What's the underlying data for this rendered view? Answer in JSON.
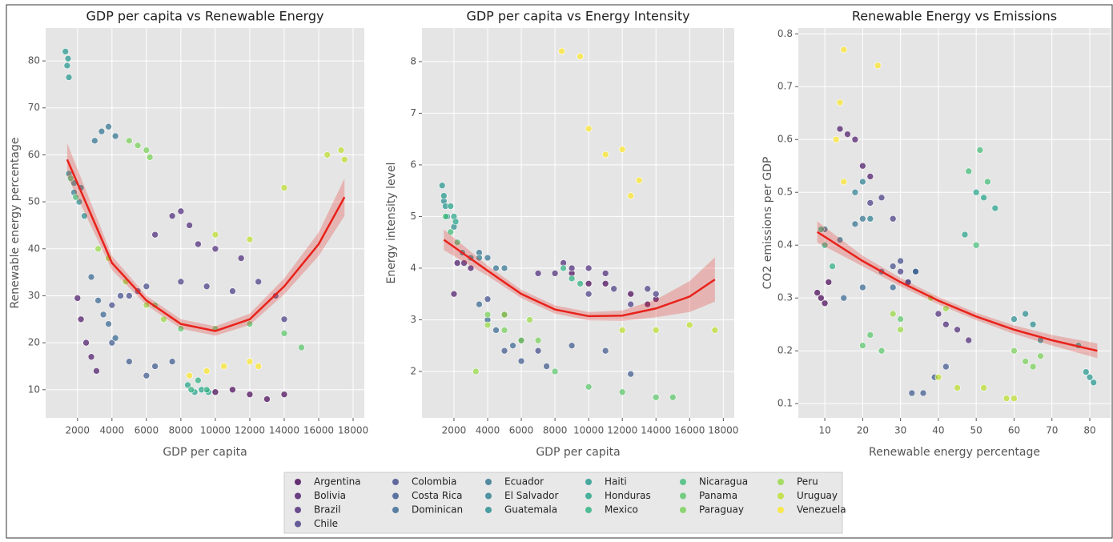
{
  "chart_data": [
    {
      "type": "scatter",
      "title": "GDP per capita vs Renewable Energy",
      "x_label": "GDP per capita",
      "y_label": "Renewable energy percentage",
      "xlim": [
        150,
        18650
      ],
      "ylim": [
        4,
        87
      ],
      "xticks": [
        2000,
        4000,
        6000,
        8000,
        10000,
        12000,
        14000,
        16000,
        18000
      ],
      "yticks": [
        10,
        20,
        30,
        40,
        50,
        60,
        70,
        80
      ],
      "grid": true,
      "series": [
        {
          "name": "Argentina",
          "color": "#440154",
          "x": [
            10000,
            11000,
            12000,
            13000,
            14000
          ],
          "values": [
            9.5,
            10,
            9,
            8,
            9
          ]
        },
        {
          "name": "Bolivia",
          "color": "#481467",
          "x": [
            2000,
            2200,
            2500,
            2800,
            3100
          ],
          "values": [
            29.5,
            25,
            20,
            17,
            14
          ]
        },
        {
          "name": "Brazil",
          "color": "#482576",
          "x": [
            6500,
            7500,
            8000,
            8500,
            9000,
            10000,
            11500
          ],
          "values": [
            43,
            47,
            48,
            45,
            41,
            40,
            38
          ]
        },
        {
          "name": "Chile",
          "color": "#453781",
          "x": [
            8000,
            9500,
            11000,
            12500,
            13500,
            14000
          ],
          "values": [
            33,
            32,
            31,
            33,
            30,
            25
          ]
        },
        {
          "name": "Colombia",
          "color": "#3f4788",
          "x": [
            4000,
            4500,
            5000,
            5500,
            6000
          ],
          "values": [
            28,
            30,
            30,
            31,
            32
          ]
        },
        {
          "name": "Costa Rica",
          "color": "#39558c",
          "x": [
            4000,
            5000,
            6000,
            6500,
            7500
          ],
          "values": [
            20,
            16,
            13,
            15,
            16
          ]
        },
        {
          "name": "Dominican",
          "color": "#32648e",
          "x": [
            2800,
            3200,
            3500,
            3800,
            4200
          ],
          "values": [
            34,
            29,
            26,
            24,
            21
          ]
        },
        {
          "name": "Ecuador",
          "color": "#2d718e",
          "x": [
            3000,
            3400,
            3800,
            4200
          ],
          "values": [
            63,
            65,
            66,
            64
          ]
        },
        {
          "name": "El Salvador",
          "color": "#287d8e",
          "x": [
            1800,
            2200
          ],
          "values": [
            52,
            53
          ]
        },
        {
          "name": "Guatemala",
          "color": "#238a8d",
          "x": [
            1500,
            1800,
            2100,
            2400
          ],
          "values": [
            56,
            54,
            50,
            47
          ]
        },
        {
          "name": "Haiti",
          "color": "#1f968b",
          "x": [
            1300,
            1400,
            1500,
            1450
          ],
          "values": [
            82,
            79,
            76.5,
            80.5
          ]
        },
        {
          "name": "Honduras",
          "color": "#20a386",
          "x": [
            8400,
            8800,
            9200,
            9600
          ],
          "values": [
            11,
            9.5,
            10,
            9.5
          ]
        },
        {
          "name": "Mexico",
          "color": "#29af7f",
          "x": [
            8600,
            9000,
            9500
          ],
          "values": [
            10,
            12,
            10
          ]
        },
        {
          "name": "Nicaragua",
          "color": "#3dbc74",
          "x": [
            1600,
            1900
          ],
          "values": [
            55,
            51
          ]
        },
        {
          "name": "Panama",
          "color": "#56c667",
          "x": [
            6500,
            8000,
            10000,
            12000,
            14000,
            15000
          ],
          "values": [
            28,
            23,
            23,
            24,
            22,
            19
          ]
        },
        {
          "name": "Paraguay",
          "color": "#75d054",
          "x": [
            5000,
            5500,
            6000,
            6200
          ],
          "values": [
            63,
            62,
            61,
            59.5
          ]
        },
        {
          "name": "Peru",
          "color": "#95d840",
          "x": [
            3200,
            3800,
            4800,
            6000,
            7000
          ],
          "values": [
            40,
            38,
            33,
            28,
            25
          ]
        },
        {
          "name": "Uruguay",
          "color": "#bade28",
          "x": [
            10000,
            12000,
            14000,
            16500,
            17300,
            17500
          ],
          "values": [
            43,
            42,
            53,
            60,
            61,
            59
          ]
        },
        {
          "name": "Venezuela",
          "color": "#fde725",
          "x": [
            8500,
            9500,
            10500,
            12000,
            12500
          ],
          "values": [
            13,
            14,
            15,
            16,
            15
          ]
        }
      ],
      "fit": {
        "color": "#e8221b",
        "x": [
          1400,
          4000,
          6000,
          8000,
          10000,
          12000,
          14000,
          16000,
          17500
        ],
        "values": [
          59,
          37,
          29,
          24,
          22.5,
          25,
          32,
          41,
          51
        ],
        "lower": [
          55.5,
          35.5,
          28,
          23,
          21.5,
          23.8,
          30.3,
          38.5,
          47
        ],
        "upper": [
          62.5,
          38.5,
          30,
          25,
          23.5,
          26.2,
          33.7,
          43.5,
          55
        ]
      }
    },
    {
      "type": "scatter",
      "title": "GDP per capita vs Energy Intensity",
      "x_label": "GDP per capita",
      "y_label": "Energy intensity level",
      "xlim": [
        100,
        18650
      ],
      "ylim": [
        1.1,
        8.65
      ],
      "xticks": [
        2000,
        4000,
        6000,
        8000,
        10000,
        12000,
        14000,
        16000,
        18000
      ],
      "yticks": [
        2,
        3,
        4,
        5,
        6,
        7,
        8
      ],
      "grid": true,
      "series": [
        {
          "color": "#440154",
          "x": [
            9000,
            10000,
            11000,
            12500,
            13500,
            14000
          ],
          "values": [
            3.9,
            3.7,
            3.7,
            3.5,
            3.3,
            3.4
          ]
        },
        {
          "color": "#481467",
          "x": [
            2000,
            2200,
            2600,
            3000
          ],
          "values": [
            3.5,
            4.1,
            4.1,
            4.0
          ]
        },
        {
          "color": "#482576",
          "x": [
            7000,
            8000,
            8500,
            9000,
            10000,
            11000
          ],
          "values": [
            3.9,
            3.9,
            4.1,
            4.0,
            4.0,
            3.9
          ]
        },
        {
          "color": "#453781",
          "x": [
            10000,
            11500,
            12500,
            13500,
            14000
          ],
          "values": [
            3.5,
            3.6,
            3.3,
            3.6,
            3.5
          ]
        },
        {
          "color": "#3f4788",
          "x": [
            4000,
            5000,
            6000,
            7000
          ],
          "values": [
            3.4,
            3.1,
            2.6,
            2.4
          ]
        },
        {
          "color": "#39558c",
          "x": [
            5000,
            6000,
            7500,
            9000,
            11000,
            12500
          ],
          "values": [
            2.4,
            2.2,
            2.1,
            2.5,
            2.4,
            1.95
          ]
        },
        {
          "color": "#32648e",
          "x": [
            3500,
            4000,
            4500,
            5500
          ],
          "values": [
            3.3,
            3.0,
            2.8,
            2.5
          ]
        },
        {
          "color": "#2d718e",
          "x": [
            3500,
            4000,
            4500,
            5000
          ],
          "values": [
            4.3,
            4.2,
            4.0,
            4.0
          ]
        },
        {
          "color": "#287d8e",
          "x": [
            2500,
            3000,
            3500
          ],
          "values": [
            4.3,
            4.2,
            4.2
          ]
        },
        {
          "color": "#238a8d",
          "x": [
            1400,
            1600,
            2000
          ],
          "values": [
            5.3,
            5.0,
            4.8
          ]
        },
        {
          "color": "#1f968b",
          "x": [
            1300,
            1400,
            1500
          ],
          "values": [
            5.6,
            5.4,
            5.2
          ]
        },
        {
          "color": "#20a386",
          "x": [
            1800,
            2000,
            2100
          ],
          "values": [
            5.2,
            5.0,
            4.9
          ]
        },
        {
          "color": "#29af7f",
          "x": [
            8500,
            9000,
            9500
          ],
          "values": [
            4.0,
            3.8,
            3.7
          ]
        },
        {
          "color": "#3dbc74",
          "x": [
            1500,
            1800,
            2200
          ],
          "values": [
            5.0,
            4.7,
            4.5
          ]
        },
        {
          "color": "#56c667",
          "x": [
            8000,
            10000,
            12000,
            14000,
            15000
          ],
          "values": [
            2.0,
            1.7,
            1.6,
            1.5,
            1.5
          ]
        },
        {
          "color": "#75d054",
          "x": [
            4000,
            5000,
            6000,
            7000
          ],
          "values": [
            3.1,
            2.8,
            2.6,
            2.6
          ]
        },
        {
          "color": "#95d840",
          "x": [
            3300,
            4000,
            5000,
            6500
          ],
          "values": [
            2.0,
            2.9,
            3.1,
            3.0
          ]
        },
        {
          "color": "#bade28",
          "x": [
            12000,
            14000,
            16000,
            17500
          ],
          "values": [
            2.8,
            2.8,
            2.9,
            2.8
          ]
        },
        {
          "color": "#fde725",
          "x": [
            8400,
            9500,
            10000,
            11000,
            12000,
            12500,
            13000
          ],
          "values": [
            8.2,
            8.1,
            6.7,
            6.2,
            6.3,
            5.4,
            5.7
          ]
        }
      ],
      "fit": {
        "color": "#e8221b",
        "x": [
          1400,
          4000,
          6000,
          8000,
          10000,
          12000,
          14000,
          16000,
          17500
        ],
        "values": [
          4.55,
          3.95,
          3.5,
          3.2,
          3.07,
          3.08,
          3.22,
          3.45,
          3.78
        ],
        "lower": [
          4.35,
          3.85,
          3.42,
          3.12,
          2.99,
          2.98,
          3.05,
          3.15,
          3.35
        ],
        "upper": [
          4.75,
          4.05,
          3.58,
          3.28,
          3.15,
          3.18,
          3.39,
          3.75,
          4.21
        ]
      }
    },
    {
      "type": "scatter",
      "title": "Renewable Energy vs Emissions",
      "x_label": "Renewable energy percentage",
      "y_label": "CO2 emissions per GDP",
      "xlim": [
        3,
        85.5
      ],
      "ylim": [
        0.073,
        0.811
      ],
      "xticks": [
        10,
        20,
        30,
        40,
        50,
        60,
        70,
        80
      ],
      "yticks": [
        0.1,
        0.2,
        0.3,
        0.4,
        0.5,
        0.6,
        0.7,
        0.8
      ],
      "grid": true,
      "series": [
        {
          "color": "#440154",
          "x": [
            8,
            9,
            10,
            11
          ],
          "values": [
            0.31,
            0.3,
            0.29,
            0.33
          ]
        },
        {
          "color": "#481467",
          "x": [
            14,
            16,
            18,
            20,
            22
          ],
          "values": [
            0.62,
            0.61,
            0.6,
            0.55,
            0.53
          ]
        },
        {
          "color": "#482576",
          "x": [
            40,
            42,
            45,
            48
          ],
          "values": [
            0.27,
            0.25,
            0.24,
            0.22
          ]
        },
        {
          "color": "#453781",
          "x": [
            22,
            25,
            28,
            30,
            32
          ],
          "values": [
            0.48,
            0.49,
            0.45,
            0.35,
            0.33
          ]
        },
        {
          "color": "#3f4788",
          "x": [
            28,
            30,
            32,
            34
          ],
          "values": [
            0.36,
            0.37,
            0.33,
            0.35
          ]
        },
        {
          "color": "#39558c",
          "x": [
            33,
            36,
            39,
            42
          ],
          "values": [
            0.12,
            0.12,
            0.15,
            0.17
          ]
        },
        {
          "color": "#32648e",
          "x": [
            15,
            20,
            25,
            28,
            34
          ],
          "values": [
            0.3,
            0.32,
            0.35,
            0.32,
            0.35
          ]
        },
        {
          "color": "#2d718e",
          "x": [
            10,
            14,
            18,
            20
          ],
          "values": [
            0.43,
            0.41,
            0.44,
            0.45
          ]
        },
        {
          "color": "#287d8e",
          "x": [
            18,
            20,
            22
          ],
          "values": [
            0.5,
            0.52,
            0.45
          ]
        },
        {
          "color": "#238a8d",
          "x": [
            60,
            63,
            65,
            67
          ],
          "values": [
            0.26,
            0.27,
            0.25,
            0.22
          ]
        },
        {
          "color": "#1f968b",
          "x": [
            77,
            79,
            80,
            81
          ],
          "values": [
            0.21,
            0.16,
            0.15,
            0.14
          ]
        },
        {
          "color": "#20a386",
          "x": [
            47,
            50,
            52,
            55
          ],
          "values": [
            0.42,
            0.5,
            0.49,
            0.47
          ]
        },
        {
          "color": "#29af7f",
          "x": [
            9,
            10,
            12
          ],
          "values": [
            0.43,
            0.4,
            0.36
          ]
        },
        {
          "color": "#3dbc74",
          "x": [
            48,
            51,
            53,
            50
          ],
          "values": [
            0.54,
            0.58,
            0.52,
            0.4
          ]
        },
        {
          "color": "#56c667",
          "x": [
            20,
            22,
            25,
            30
          ],
          "values": [
            0.21,
            0.23,
            0.2,
            0.26
          ]
        },
        {
          "color": "#75d054",
          "x": [
            60,
            63,
            65,
            67
          ],
          "values": [
            0.2,
            0.18,
            0.17,
            0.19
          ]
        },
        {
          "color": "#95d840",
          "x": [
            28,
            30,
            38,
            42
          ],
          "values": [
            0.27,
            0.24,
            0.3,
            0.28
          ]
        },
        {
          "color": "#bade28",
          "x": [
            40,
            45,
            52,
            58,
            60
          ],
          "values": [
            0.15,
            0.13,
            0.13,
            0.11,
            0.11
          ]
        },
        {
          "color": "#fde725",
          "x": [
            13,
            14,
            15,
            15,
            24
          ],
          "values": [
            0.6,
            0.67,
            0.77,
            0.52,
            0.74
          ]
        }
      ],
      "fit": {
        "color": "#e8221b",
        "x": [
          8,
          20,
          30,
          40,
          50,
          60,
          70,
          82
        ],
        "values": [
          0.425,
          0.37,
          0.33,
          0.295,
          0.265,
          0.24,
          0.22,
          0.2
        ],
        "lower": [
          0.405,
          0.36,
          0.322,
          0.288,
          0.258,
          0.232,
          0.21,
          0.186
        ],
        "upper": [
          0.445,
          0.38,
          0.338,
          0.302,
          0.272,
          0.248,
          0.23,
          0.214
        ]
      }
    }
  ]
}
